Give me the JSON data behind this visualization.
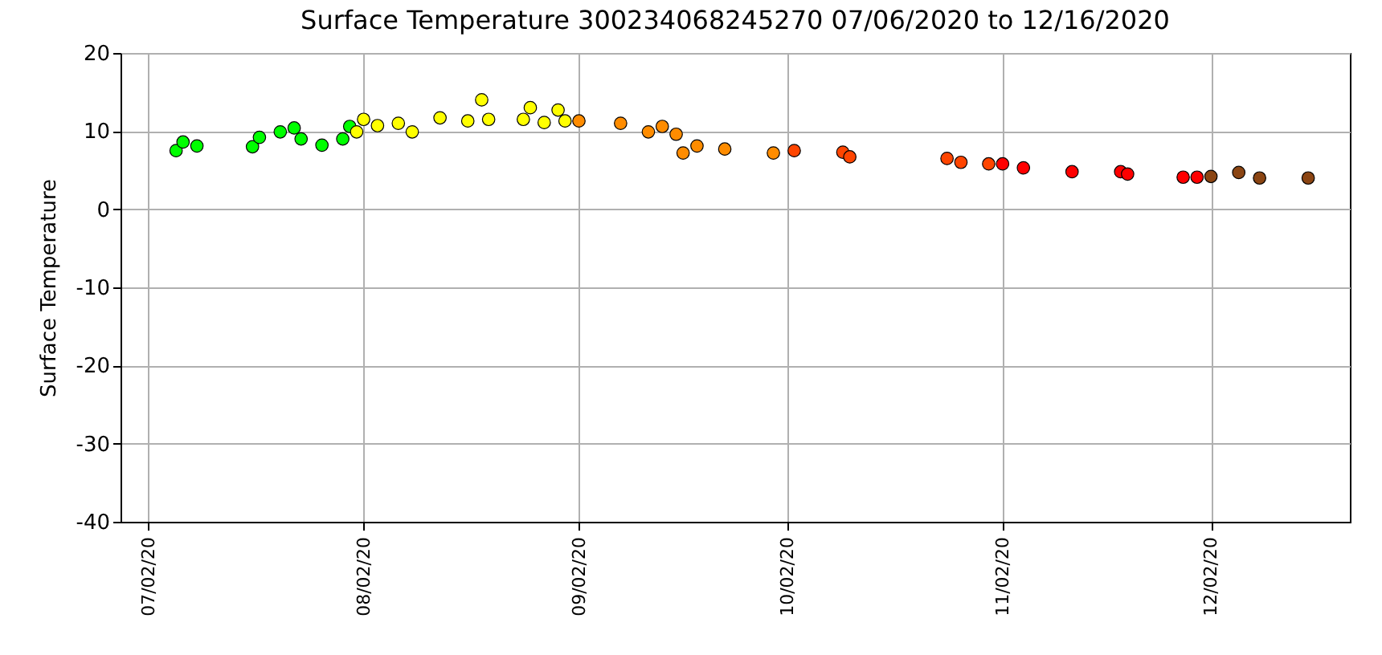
{
  "chart_data": {
    "type": "scatter",
    "title": "Surface Temperature 300234068245270  07/06/2020 to 12/16/2020",
    "ylabel": "Surface Temperature",
    "xlim": [
      "2020-06-28",
      "2020-12-22"
    ],
    "xticks": [
      {
        "value": "2020-07-02",
        "label": "07/02/20"
      },
      {
        "value": "2020-08-02",
        "label": "08/02/20"
      },
      {
        "value": "2020-09-02",
        "label": "09/02/20"
      },
      {
        "value": "2020-10-02",
        "label": "10/02/20"
      },
      {
        "value": "2020-11-02",
        "label": "11/02/20"
      },
      {
        "value": "2020-12-02",
        "label": "12/02/20"
      }
    ],
    "ylim": [
      -40,
      20
    ],
    "yticks": [
      -40,
      -30,
      -20,
      -10,
      0,
      10,
      20
    ],
    "grid": true,
    "marker": "circle",
    "series": [
      {
        "color": "#00ff00",
        "x": [
          "2020-07-06",
          "2020-07-07",
          "2020-07-09",
          "2020-07-17",
          "2020-07-18",
          "2020-07-21",
          "2020-07-23",
          "2020-07-24",
          "2020-07-27",
          "2020-07-30",
          "2020-07-31"
        ],
        "values": [
          7.5,
          8.6,
          8.1,
          8.0,
          9.2,
          9.9,
          10.4,
          9.0,
          8.2,
          9.0,
          10.6
        ]
      },
      {
        "color": "#ffff00",
        "x": [
          "2020-08-01",
          "2020-08-02",
          "2020-08-04",
          "2020-08-07",
          "2020-08-09",
          "2020-08-13",
          "2020-08-17",
          "2020-08-19",
          "2020-08-20",
          "2020-08-25",
          "2020-08-26",
          "2020-08-28",
          "2020-08-30",
          "2020-08-31"
        ],
        "values": [
          9.9,
          11.5,
          10.7,
          11.0,
          9.9,
          11.7,
          11.3,
          14.0,
          11.5,
          11.5,
          13.0,
          11.1,
          12.7,
          11.3
        ]
      },
      {
        "color": "#ff8c00",
        "x": [
          "2020-09-02",
          "2020-09-08",
          "2020-09-12",
          "2020-09-14",
          "2020-09-16",
          "2020-09-17",
          "2020-09-19",
          "2020-09-23",
          "2020-09-30"
        ],
        "values": [
          11.3,
          11.0,
          9.9,
          10.6,
          9.6,
          7.2,
          8.1,
          7.7,
          7.2
        ]
      },
      {
        "color": "#ff4500",
        "x": [
          "2020-10-03",
          "2020-10-10",
          "2020-10-11",
          "2020-10-25",
          "2020-10-27",
          "2020-10-31"
        ],
        "values": [
          7.5,
          7.3,
          6.7,
          6.5,
          6.0,
          5.8
        ]
      },
      {
        "color": "#ff0000",
        "x": [
          "2020-11-02",
          "2020-11-05",
          "2020-11-12",
          "2020-11-19",
          "2020-11-20",
          "2020-11-28",
          "2020-11-30"
        ],
        "values": [
          5.8,
          5.3,
          4.8,
          4.8,
          4.5,
          4.1,
          4.1
        ]
      },
      {
        "color": "#8b4513",
        "x": [
          "2020-12-02",
          "2020-12-06",
          "2020-12-09",
          "2020-12-16"
        ],
        "values": [
          4.2,
          4.7,
          4.0,
          4.0
        ]
      }
    ]
  }
}
